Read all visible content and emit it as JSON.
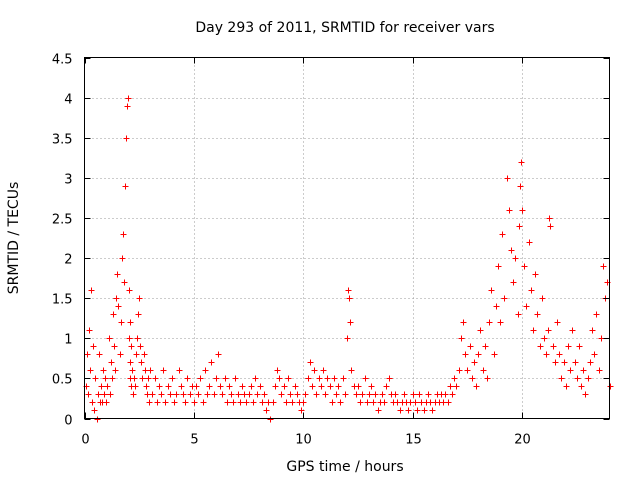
{
  "chart_data": {
    "type": "scatter",
    "title": "Day 293 of 2011, SRMTID for receiver vars",
    "xlabel": "GPS time / hours",
    "ylabel": "SRMTID / TECUs",
    "xlim": [
      0,
      24
    ],
    "ylim": [
      0,
      4.5
    ],
    "xticks": [
      0,
      5,
      10,
      15,
      20
    ],
    "yticks": [
      0,
      0.5,
      1,
      1.5,
      2,
      2.5,
      3,
      3.5,
      4,
      4.5
    ],
    "xtick_labels": [
      "0",
      "5",
      "10",
      "15",
      "20"
    ],
    "ytick_labels": [
      "0",
      "0.5",
      "1",
      "1.5",
      "2",
      "2.5",
      "3",
      "3.5",
      "4",
      "4.5"
    ],
    "grid": true,
    "marker": "+",
    "color": "#ff0000",
    "series": [
      {
        "name": "SRMTID",
        "x": [
          0.05,
          0.1,
          0.15,
          0.2,
          0.25,
          0.3,
          0.35,
          0.4,
          0.45,
          0.5,
          0.55,
          0.6,
          0.65,
          0.7,
          0.75,
          0.8,
          0.85,
          0.9,
          0.95,
          1.0,
          1.05,
          1.1,
          1.15,
          1.2,
          1.25,
          1.3,
          1.35,
          1.4,
          1.45,
          1.5,
          1.55,
          1.6,
          1.65,
          1.7,
          1.75,
          1.8,
          1.85,
          1.9,
          1.95,
          2.0,
          2.02,
          2.04,
          2.06,
          2.08,
          2.1,
          2.12,
          2.14,
          2.16,
          2.2,
          2.25,
          2.3,
          2.35,
          2.4,
          2.45,
          2.5,
          2.55,
          2.6,
          2.65,
          2.7,
          2.75,
          2.8,
          2.85,
          2.9,
          2.95,
          3.0,
          3.1,
          3.2,
          3.3,
          3.4,
          3.5,
          3.6,
          3.7,
          3.8,
          3.9,
          4.0,
          4.1,
          4.2,
          4.3,
          4.4,
          4.5,
          4.6,
          4.7,
          4.8,
          4.9,
          5.0,
          5.1,
          5.2,
          5.3,
          5.4,
          5.5,
          5.6,
          5.7,
          5.8,
          5.9,
          6.0,
          6.1,
          6.2,
          6.3,
          6.4,
          6.5,
          6.6,
          6.7,
          6.8,
          6.9,
          7.0,
          7.1,
          7.2,
          7.3,
          7.4,
          7.5,
          7.6,
          7.7,
          7.8,
          7.9,
          8.0,
          8.1,
          8.2,
          8.3,
          8.4,
          8.5,
          8.6,
          8.7,
          8.8,
          8.9,
          9.0,
          9.1,
          9.2,
          9.3,
          9.4,
          9.5,
          9.6,
          9.7,
          9.8,
          9.9,
          10.0,
          10.1,
          10.2,
          10.3,
          10.4,
          10.5,
          10.6,
          10.7,
          10.8,
          10.9,
          11.0,
          11.1,
          11.2,
          11.3,
          11.4,
          11.5,
          11.6,
          11.7,
          11.8,
          11.9,
          12.0,
          12.05,
          12.1,
          12.15,
          12.2,
          12.3,
          12.4,
          12.5,
          12.6,
          12.7,
          12.8,
          12.9,
          13.0,
          13.1,
          13.2,
          13.3,
          13.4,
          13.5,
          13.6,
          13.7,
          13.8,
          13.9,
          14.0,
          14.1,
          14.2,
          14.3,
          14.4,
          14.5,
          14.6,
          14.7,
          14.8,
          14.9,
          15.0,
          15.1,
          15.2,
          15.3,
          15.4,
          15.5,
          15.6,
          15.7,
          15.8,
          15.9,
          16.0,
          16.1,
          16.2,
          16.3,
          16.4,
          16.5,
          16.6,
          16.7,
          16.8,
          16.9,
          17.0,
          17.1,
          17.2,
          17.3,
          17.4,
          17.5,
          17.6,
          17.7,
          17.8,
          17.9,
          18.0,
          18.1,
          18.2,
          18.3,
          18.4,
          18.5,
          18.6,
          18.7,
          18.8,
          18.9,
          19.0,
          19.1,
          19.2,
          19.3,
          19.4,
          19.5,
          19.6,
          19.7,
          19.8,
          19.85,
          19.9,
          19.95,
          20.0,
          20.1,
          20.2,
          20.3,
          20.4,
          20.5,
          20.6,
          20.7,
          20.8,
          20.9,
          21.0,
          21.1,
          21.2,
          21.25,
          21.3,
          21.4,
          21.5,
          21.6,
          21.7,
          21.8,
          21.9,
          22.0,
          22.1,
          22.2,
          22.3,
          22.4,
          22.5,
          22.6,
          22.7,
          22.8,
          22.9,
          23.0,
          23.1,
          23.2,
          23.3,
          23.4,
          23.5,
          23.6,
          23.7,
          23.8,
          23.9,
          24.0
        ],
        "y": [
          0.4,
          0.8,
          0.3,
          1.1,
          0.6,
          1.6,
          0.2,
          0.9,
          0.1,
          0.5,
          0.0,
          0.3,
          0.8,
          0.2,
          0.4,
          0.2,
          0.6,
          0.3,
          0.5,
          0.2,
          0.4,
          1.0,
          0.3,
          0.7,
          0.5,
          1.3,
          0.9,
          0.6,
          1.5,
          1.8,
          1.4,
          0.8,
          1.2,
          2.0,
          2.3,
          1.7,
          2.9,
          3.5,
          3.9,
          4.0,
          1.6,
          1.0,
          0.7,
          1.2,
          0.5,
          0.9,
          0.4,
          0.6,
          0.3,
          0.5,
          0.4,
          0.8,
          1.0,
          1.3,
          1.5,
          0.9,
          0.7,
          0.5,
          0.8,
          0.6,
          0.4,
          0.3,
          0.5,
          0.2,
          0.6,
          0.3,
          0.5,
          0.2,
          0.4,
          0.3,
          0.6,
          0.2,
          0.4,
          0.3,
          0.5,
          0.2,
          0.3,
          0.6,
          0.4,
          0.3,
          0.2,
          0.5,
          0.3,
          0.4,
          0.2,
          0.4,
          0.3,
          0.5,
          0.2,
          0.6,
          0.3,
          0.4,
          0.7,
          0.3,
          0.5,
          0.8,
          0.4,
          0.3,
          0.5,
          0.2,
          0.4,
          0.3,
          0.2,
          0.5,
          0.3,
          0.2,
          0.4,
          0.3,
          0.2,
          0.3,
          0.4,
          0.2,
          0.5,
          0.3,
          0.4,
          0.2,
          0.3,
          0.1,
          0.2,
          0.0,
          0.2,
          0.4,
          0.6,
          0.5,
          0.3,
          0.4,
          0.2,
          0.5,
          0.3,
          0.2,
          0.4,
          0.3,
          0.2,
          0.1,
          0.2,
          0.3,
          0.5,
          0.7,
          0.4,
          0.6,
          0.3,
          0.5,
          0.4,
          0.6,
          0.3,
          0.5,
          0.4,
          0.2,
          0.5,
          0.3,
          0.4,
          0.2,
          0.5,
          0.3,
          1.0,
          1.6,
          1.5,
          1.2,
          0.6,
          0.4,
          0.3,
          0.4,
          0.2,
          0.3,
          0.5,
          0.2,
          0.3,
          0.4,
          0.2,
          0.3,
          0.1,
          0.2,
          0.3,
          0.2,
          0.4,
          0.5,
          0.3,
          0.2,
          0.3,
          0.2,
          0.1,
          0.2,
          0.3,
          0.2,
          0.1,
          0.2,
          0.3,
          0.2,
          0.1,
          0.3,
          0.2,
          0.1,
          0.2,
          0.3,
          0.2,
          0.1,
          0.2,
          0.3,
          0.2,
          0.3,
          0.2,
          0.3,
          0.2,
          0.4,
          0.3,
          0.5,
          0.4,
          0.6,
          1.0,
          1.2,
          0.8,
          0.6,
          0.9,
          0.5,
          0.7,
          0.4,
          0.8,
          1.1,
          0.6,
          0.9,
          0.5,
          1.2,
          1.6,
          0.8,
          1.4,
          1.9,
          1.2,
          2.3,
          1.5,
          3.0,
          2.6,
          2.1,
          1.7,
          2.0,
          1.3,
          2.4,
          2.9,
          3.2,
          2.6,
          1.9,
          1.4,
          2.2,
          1.6,
          1.1,
          1.8,
          1.3,
          0.9,
          1.5,
          1.0,
          0.8,
          1.1,
          2.5,
          2.4,
          0.9,
          0.7,
          1.2,
          0.8,
          0.5,
          0.7,
          0.4,
          0.9,
          0.6,
          1.1,
          0.7,
          0.5,
          0.9,
          0.4,
          0.6,
          0.3,
          0.5,
          0.7,
          1.1,
          0.8,
          1.3,
          0.6,
          1.0,
          1.9,
          1.5,
          1.7,
          0.4
        ]
      }
    ]
  }
}
